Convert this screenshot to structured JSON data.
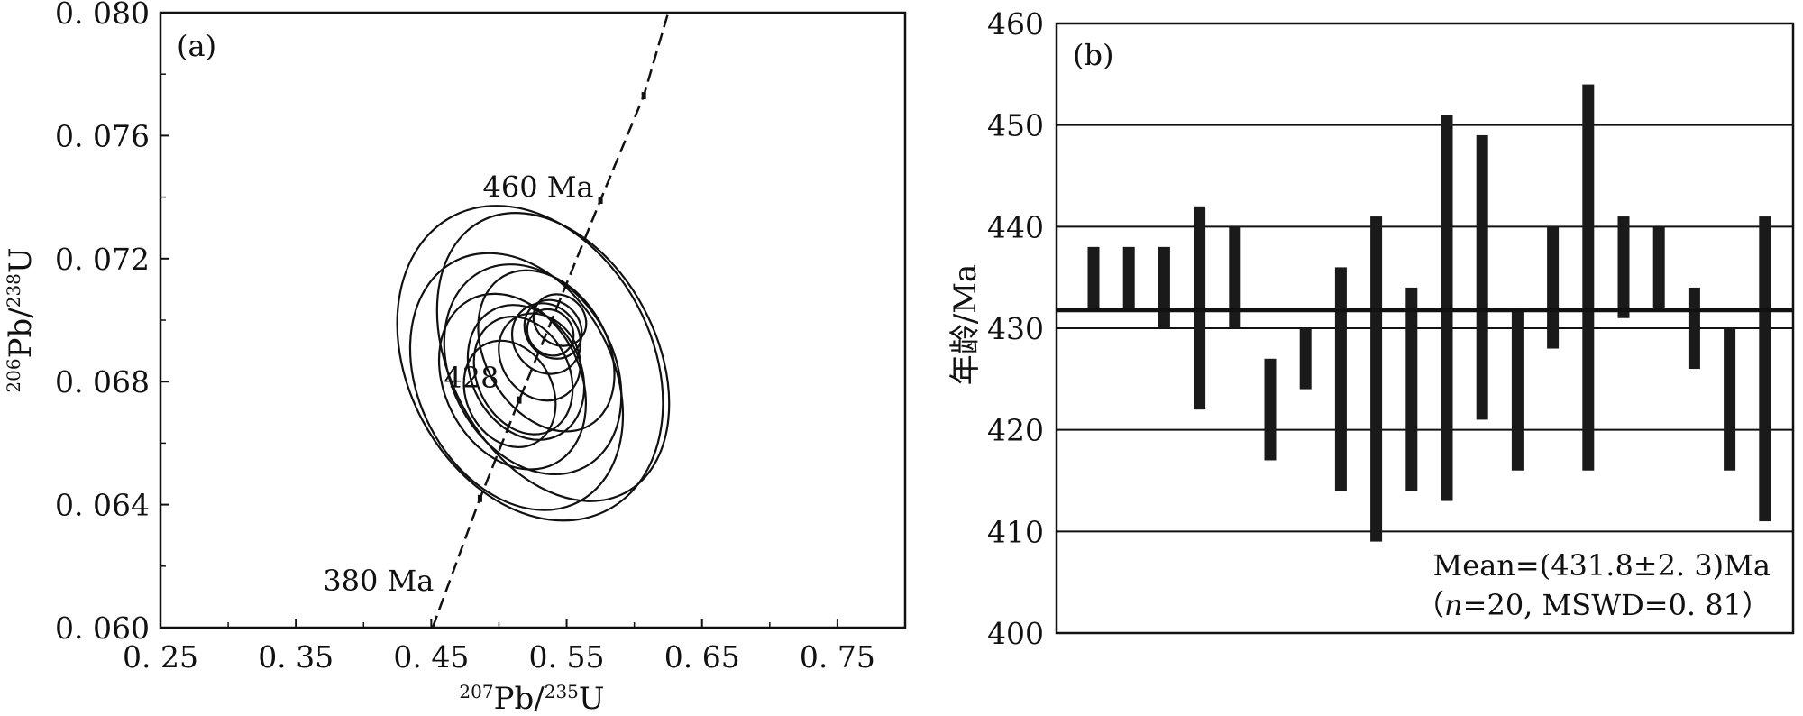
{
  "chart_data": [
    {
      "type": "scatter",
      "panel_label": "(a)",
      "xlabel": {
        "sup1": "207",
        "base1": "Pb/",
        "sup2": "235",
        "base2": "U"
      },
      "ylabel": {
        "sup1": "206",
        "base1": "Pb/",
        "sup2": "238",
        "base2": "U"
      },
      "xlim": [
        0.25,
        0.8
      ],
      "ylim": [
        0.06,
        0.08
      ],
      "xticks": [
        "0. 25",
        "0. 35",
        "0. 45",
        "0. 55",
        "0. 65",
        "0. 75"
      ],
      "xtick_values": [
        0.25,
        0.35,
        0.45,
        0.55,
        0.65,
        0.75
      ],
      "yticks": [
        "0. 060",
        "0. 064",
        "0. 068",
        "0. 072",
        "0. 076",
        "0. 080"
      ],
      "ytick_values": [
        0.06,
        0.064,
        0.068,
        0.072,
        0.076,
        0.08
      ],
      "concordia": {
        "points": [
          [
            0.451,
            0.06
          ],
          [
            0.486,
            0.0642
          ],
          [
            0.515,
            0.0674
          ],
          [
            0.575,
            0.0739
          ],
          [
            0.607,
            0.0773
          ],
          [
            0.625,
            0.08
          ]
        ],
        "age_labels": [
          {
            "text": "460 Ma",
            "x": 0.57,
            "y": 0.074
          },
          {
            "text": "428",
            "x": 0.5,
            "y": 0.0678
          },
          {
            "text": "380 Ma",
            "x": 0.452,
            "y": 0.0612
          }
        ]
      },
      "ellipses": [
        {
          "cx": 0.523,
          "cy": 0.0686,
          "rx": 0.09,
          "ry": 0.0054,
          "angle": 28
        },
        {
          "cx": 0.54,
          "cy": 0.0688,
          "rx": 0.076,
          "ry": 0.005,
          "angle": 28
        },
        {
          "cx": 0.513,
          "cy": 0.068,
          "rx": 0.072,
          "ry": 0.0044,
          "angle": 27
        },
        {
          "cx": 0.525,
          "cy": 0.0684,
          "rx": 0.06,
          "ry": 0.0036,
          "angle": 28
        },
        {
          "cx": 0.51,
          "cy": 0.068,
          "rx": 0.05,
          "ry": 0.003,
          "angle": 27
        },
        {
          "cx": 0.535,
          "cy": 0.069,
          "rx": 0.045,
          "ry": 0.0028,
          "angle": 30
        },
        {
          "cx": 0.52,
          "cy": 0.0683,
          "rx": 0.04,
          "ry": 0.0023,
          "angle": 28
        },
        {
          "cx": 0.518,
          "cy": 0.0682,
          "rx": 0.034,
          "ry": 0.002,
          "angle": 26
        },
        {
          "cx": 0.508,
          "cy": 0.0676,
          "rx": 0.032,
          "ry": 0.0018,
          "angle": 26
        },
        {
          "cx": 0.535,
          "cy": 0.0694,
          "rx": 0.024,
          "ry": 0.0012,
          "angle": 38
        },
        {
          "cx": 0.54,
          "cy": 0.0697,
          "rx": 0.02,
          "ry": 0.001,
          "angle": 40
        },
        {
          "cx": 0.538,
          "cy": 0.0696,
          "rx": 0.016,
          "ry": 0.0008,
          "angle": 45
        },
        {
          "cx": 0.53,
          "cy": 0.0688,
          "rx": 0.028,
          "ry": 0.0015,
          "angle": 35
        },
        {
          "cx": 0.545,
          "cy": 0.07,
          "rx": 0.018,
          "ry": 0.0009,
          "angle": 50
        }
      ]
    },
    {
      "type": "bar",
      "panel_label": "(b)",
      "ylabel": "年龄/Ma",
      "ylim": [
        400,
        460
      ],
      "yticks": [
        400,
        410,
        420,
        430,
        440,
        450,
        460
      ],
      "gridlines": [
        410,
        420,
        430,
        440,
        450
      ],
      "mean": 431.8,
      "mean_label_line1": "Mean=(431.8±2. 3)Ma",
      "mean_label_line2": {
        "open": "（",
        "n_italic": "n",
        "rest": "=20, MSWD=0. 81）"
      },
      "error_bars": [
        {
          "low": 432,
          "high": 438
        },
        {
          "low": 432,
          "high": 438
        },
        {
          "low": 430,
          "high": 438
        },
        {
          "low": 422,
          "high": 442
        },
        {
          "low": 430,
          "high": 440
        },
        {
          "low": 417,
          "high": 427
        },
        {
          "low": 424,
          "high": 430
        },
        {
          "low": 414,
          "high": 436
        },
        {
          "low": 409,
          "high": 441
        },
        {
          "low": 414,
          "high": 434
        },
        {
          "low": 413,
          "high": 451
        },
        {
          "low": 421,
          "high": 449
        },
        {
          "low": 416,
          "high": 432
        },
        {
          "low": 428,
          "high": 440
        },
        {
          "low": 416,
          "high": 454
        },
        {
          "low": 431,
          "high": 441
        },
        {
          "low": 432,
          "high": 440
        },
        {
          "low": 426,
          "high": 434
        },
        {
          "low": 416,
          "high": 430
        },
        {
          "low": 411,
          "high": 441
        }
      ]
    }
  ]
}
